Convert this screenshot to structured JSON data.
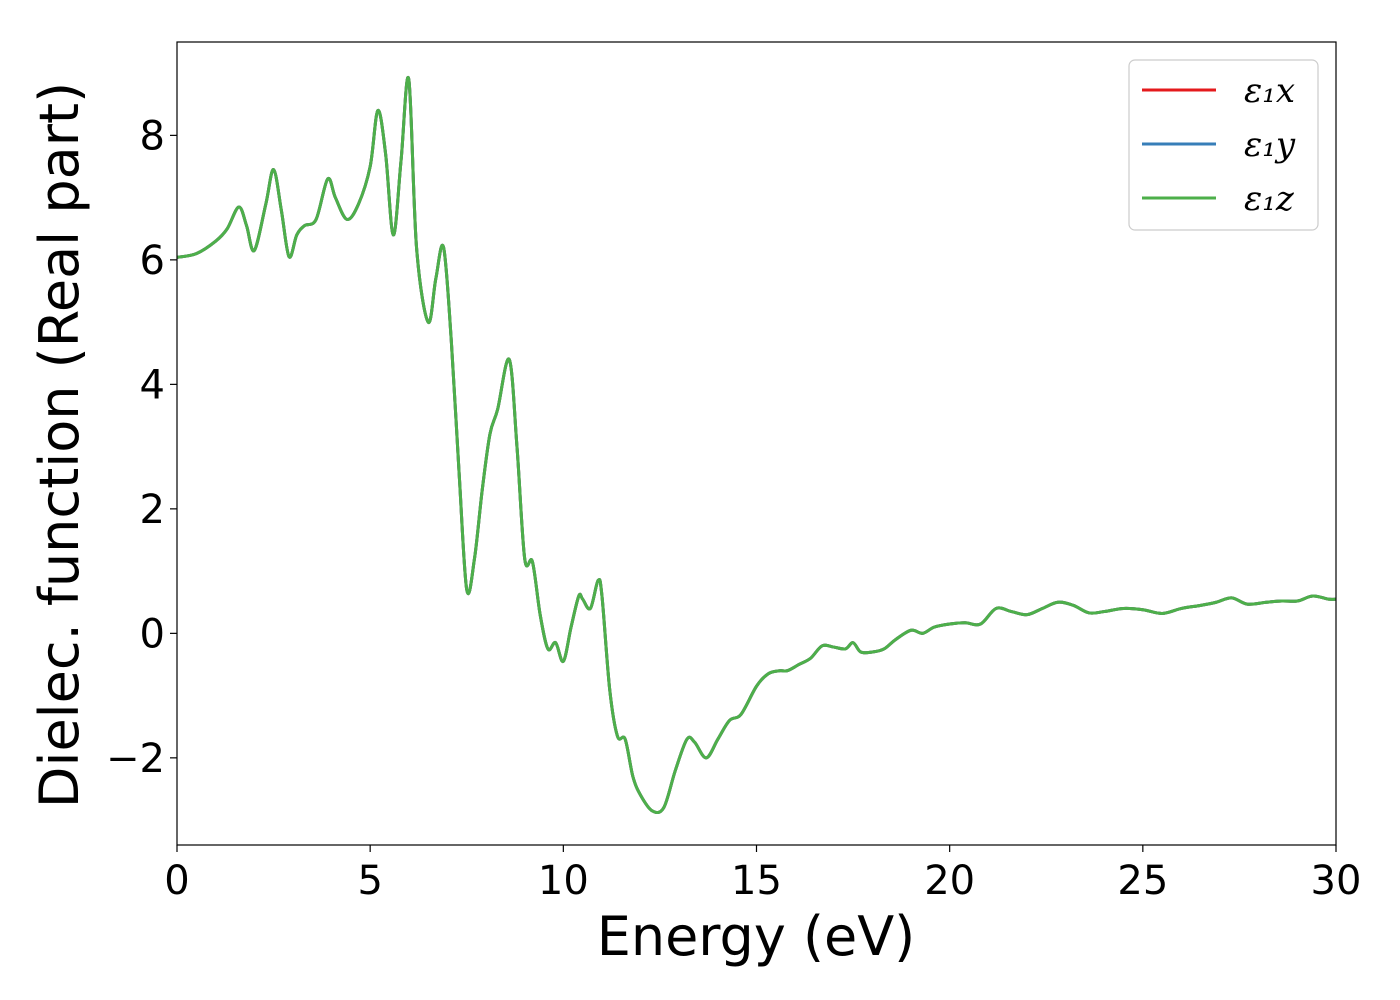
{
  "chart_data": {
    "type": "line",
    "title": "",
    "xlabel": "Energy (eV)",
    "ylabel": "Dielec. function (Real part)",
    "xlim": [
      0,
      30
    ],
    "ylim": [
      -3.4,
      9.5
    ],
    "xticks": [
      0,
      5,
      10,
      15,
      20,
      25,
      30
    ],
    "xtick_labels": [
      "0",
      "5",
      "10",
      "15",
      "20",
      "25",
      "30"
    ],
    "yticks": [
      -2,
      0,
      2,
      4,
      6,
      8
    ],
    "ytick_labels": [
      "−2",
      "0",
      "2",
      "4",
      "6",
      "8"
    ],
    "grid": false,
    "legend_position": "top-right",
    "x": [
      0,
      0.5,
      1.0,
      1.3,
      1.6,
      1.8,
      2.0,
      2.3,
      2.5,
      2.7,
      2.9,
      3.1,
      3.3,
      3.6,
      3.9,
      4.1,
      4.4,
      4.7,
      5.0,
      5.2,
      5.4,
      5.6,
      5.8,
      6.0,
      6.2,
      6.5,
      6.7,
      6.9,
      7.1,
      7.3,
      7.5,
      7.7,
      7.9,
      8.1,
      8.3,
      8.6,
      8.8,
      9.0,
      9.2,
      9.4,
      9.6,
      9.8,
      10.0,
      10.2,
      10.4,
      10.5,
      10.7,
      10.9,
      11.0,
      11.2,
      11.4,
      11.6,
      11.8,
      12.0,
      12.3,
      12.6,
      12.9,
      13.2,
      13.4,
      13.7,
      14.0,
      14.3,
      14.6,
      15.0,
      15.3,
      15.6,
      15.8,
      16.1,
      16.4,
      16.7,
      17.0,
      17.3,
      17.5,
      17.7,
      18.0,
      18.3,
      18.6,
      19.0,
      19.3,
      19.6,
      20.0,
      20.4,
      20.8,
      21.2,
      21.6,
      22.0,
      22.4,
      22.8,
      23.2,
      23.6,
      24.0,
      24.5,
      25.0,
      25.5,
      26.0,
      26.5,
      26.9,
      27.3,
      27.7,
      28.2,
      28.6,
      29.0,
      29.4,
      29.8,
      30.0
    ],
    "series": [
      {
        "name": "ε₁x",
        "color": "#e41a1c",
        "values": [
          6.04,
          6.1,
          6.3,
          6.5,
          6.85,
          6.55,
          6.15,
          6.9,
          7.45,
          6.8,
          6.05,
          6.4,
          6.55,
          6.65,
          7.3,
          7.0,
          6.65,
          6.9,
          7.5,
          8.4,
          7.7,
          6.4,
          7.6,
          8.9,
          6.2,
          5.0,
          5.7,
          6.2,
          4.7,
          2.6,
          0.7,
          1.2,
          2.3,
          3.2,
          3.6,
          4.4,
          3.0,
          1.2,
          1.15,
          0.3,
          -0.25,
          -0.15,
          -0.45,
          0.1,
          0.6,
          0.55,
          0.4,
          0.85,
          0.6,
          -0.9,
          -1.65,
          -1.7,
          -2.3,
          -2.6,
          -2.85,
          -2.8,
          -2.2,
          -1.7,
          -1.75,
          -2.0,
          -1.7,
          -1.4,
          -1.3,
          -0.85,
          -0.65,
          -0.6,
          -0.6,
          -0.5,
          -0.4,
          -0.2,
          -0.22,
          -0.25,
          -0.15,
          -0.3,
          -0.3,
          -0.25,
          -0.1,
          0.05,
          0.0,
          0.1,
          0.15,
          0.17,
          0.15,
          0.4,
          0.35,
          0.3,
          0.4,
          0.5,
          0.45,
          0.33,
          0.35,
          0.4,
          0.38,
          0.32,
          0.4,
          0.45,
          0.5,
          0.57,
          0.47,
          0.5,
          0.52,
          0.52,
          0.6,
          0.55,
          0.55
        ]
      },
      {
        "name": "ε₁y",
        "color": "#377eb8",
        "values": [
          6.04,
          6.1,
          6.3,
          6.5,
          6.85,
          6.55,
          6.15,
          6.9,
          7.45,
          6.8,
          6.05,
          6.4,
          6.55,
          6.65,
          7.3,
          7.0,
          6.65,
          6.9,
          7.5,
          8.4,
          7.7,
          6.4,
          7.6,
          8.9,
          6.2,
          5.0,
          5.7,
          6.2,
          4.7,
          2.6,
          0.7,
          1.2,
          2.3,
          3.2,
          3.6,
          4.4,
          3.0,
          1.2,
          1.15,
          0.3,
          -0.25,
          -0.15,
          -0.45,
          0.1,
          0.6,
          0.55,
          0.4,
          0.85,
          0.6,
          -0.9,
          -1.65,
          -1.7,
          -2.3,
          -2.6,
          -2.85,
          -2.8,
          -2.2,
          -1.7,
          -1.75,
          -2.0,
          -1.7,
          -1.4,
          -1.3,
          -0.85,
          -0.65,
          -0.6,
          -0.6,
          -0.5,
          -0.4,
          -0.2,
          -0.22,
          -0.25,
          -0.15,
          -0.3,
          -0.3,
          -0.25,
          -0.1,
          0.05,
          0.0,
          0.1,
          0.15,
          0.17,
          0.15,
          0.4,
          0.35,
          0.3,
          0.4,
          0.5,
          0.45,
          0.33,
          0.35,
          0.4,
          0.38,
          0.32,
          0.4,
          0.45,
          0.5,
          0.57,
          0.47,
          0.5,
          0.52,
          0.52,
          0.6,
          0.55,
          0.55
        ]
      },
      {
        "name": "ε₁z",
        "color": "#4daf4a",
        "values": [
          6.04,
          6.1,
          6.3,
          6.5,
          6.85,
          6.55,
          6.15,
          6.9,
          7.45,
          6.8,
          6.05,
          6.4,
          6.55,
          6.65,
          7.3,
          7.0,
          6.65,
          6.9,
          7.5,
          8.4,
          7.7,
          6.4,
          7.6,
          8.9,
          6.2,
          5.0,
          5.7,
          6.2,
          4.7,
          2.6,
          0.7,
          1.2,
          2.3,
          3.2,
          3.6,
          4.4,
          3.0,
          1.2,
          1.15,
          0.3,
          -0.25,
          -0.15,
          -0.45,
          0.1,
          0.6,
          0.55,
          0.4,
          0.85,
          0.6,
          -0.9,
          -1.65,
          -1.7,
          -2.3,
          -2.6,
          -2.85,
          -2.8,
          -2.2,
          -1.7,
          -1.75,
          -2.0,
          -1.7,
          -1.4,
          -1.3,
          -0.85,
          -0.65,
          -0.6,
          -0.6,
          -0.5,
          -0.4,
          -0.2,
          -0.22,
          -0.25,
          -0.15,
          -0.3,
          -0.3,
          -0.25,
          -0.1,
          0.05,
          0.0,
          0.1,
          0.15,
          0.17,
          0.15,
          0.4,
          0.35,
          0.3,
          0.4,
          0.5,
          0.45,
          0.33,
          0.35,
          0.4,
          0.38,
          0.32,
          0.4,
          0.45,
          0.5,
          0.57,
          0.47,
          0.5,
          0.52,
          0.52,
          0.6,
          0.55,
          0.55
        ]
      }
    ]
  }
}
